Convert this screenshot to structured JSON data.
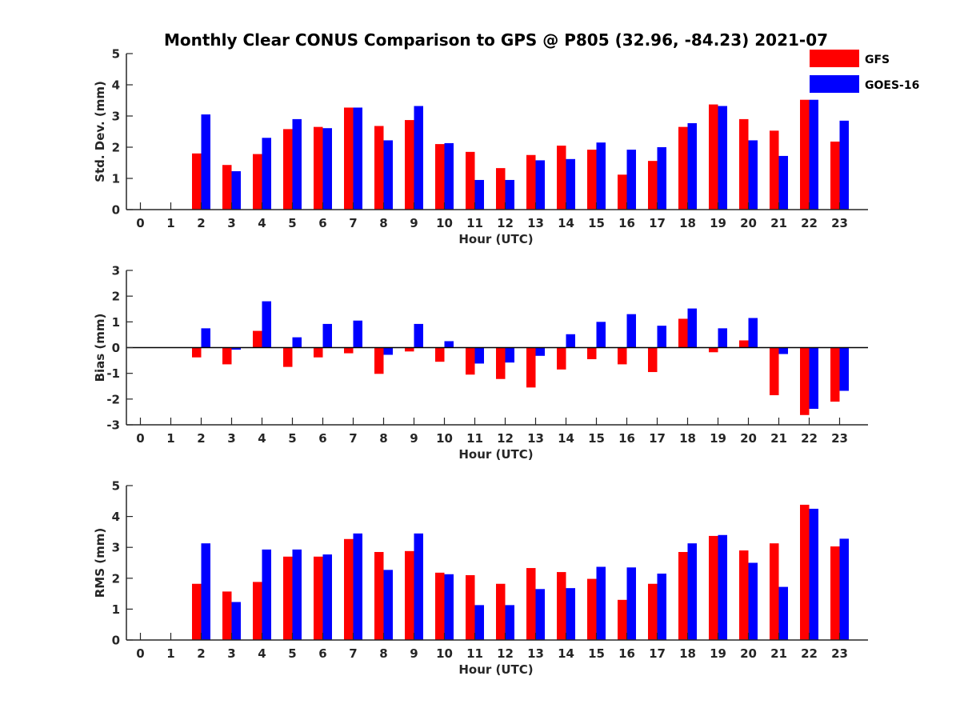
{
  "title": "Monthly Clear CONUS Comparison to GPS @ P805 (32.96, -84.23) 2021-07",
  "legend": {
    "placement": "top-right",
    "entries": [
      {
        "label": "GFS",
        "color": "#ff0000"
      },
      {
        "label": "GOES-16",
        "color": "#0000ff"
      }
    ]
  },
  "chart_data": [
    {
      "type": "bar",
      "ylabel": "Std. Dev. (mm)",
      "xlabel": "Hour (UTC)",
      "ylim": [
        0,
        5
      ],
      "yticks": [
        0,
        1,
        2,
        3,
        4,
        5
      ],
      "categories": [
        "0",
        "1",
        "2",
        "3",
        "4",
        "5",
        "6",
        "7",
        "8",
        "9",
        "10",
        "11",
        "12",
        "13",
        "14",
        "15",
        "16",
        "17",
        "18",
        "19",
        "20",
        "21",
        "22",
        "23"
      ],
      "series": [
        {
          "name": "GFS",
          "color": "#ff0000",
          "values": [
            null,
            null,
            1.8,
            1.43,
            1.78,
            2.58,
            2.65,
            3.27,
            2.68,
            2.87,
            2.1,
            1.85,
            1.33,
            1.75,
            2.05,
            1.92,
            1.12,
            1.56,
            2.65,
            3.37,
            2.9,
            2.53,
            3.52,
            2.18
          ]
        },
        {
          "name": "GOES-16",
          "color": "#0000ff",
          "values": [
            null,
            null,
            3.05,
            1.23,
            2.3,
            2.9,
            2.61,
            3.27,
            2.22,
            3.32,
            2.13,
            0.95,
            0.95,
            1.58,
            1.62,
            2.15,
            1.92,
            2.0,
            2.77,
            3.32,
            2.22,
            1.72,
            3.52,
            2.85
          ]
        }
      ]
    },
    {
      "type": "bar",
      "ylabel": "Bias (mm)",
      "xlabel": "Hour (UTC)",
      "ylim": [
        -3,
        3
      ],
      "yticks": [
        -3,
        -2,
        -1,
        0,
        1,
        2,
        3
      ],
      "categories": [
        "0",
        "1",
        "2",
        "3",
        "4",
        "5",
        "6",
        "7",
        "8",
        "9",
        "10",
        "11",
        "12",
        "13",
        "14",
        "15",
        "16",
        "17",
        "18",
        "19",
        "20",
        "21",
        "22",
        "23"
      ],
      "series": [
        {
          "name": "GFS",
          "color": "#ff0000",
          "values": [
            null,
            null,
            -0.38,
            -0.65,
            0.65,
            -0.75,
            -0.38,
            -0.22,
            -1.02,
            -0.15,
            -0.55,
            -1.05,
            -1.22,
            -1.55,
            -0.85,
            -0.45,
            -0.65,
            -0.95,
            1.12,
            -0.18,
            0.28,
            -1.85,
            -2.62,
            -2.1
          ]
        },
        {
          "name": "GOES-16",
          "color": "#0000ff",
          "values": [
            null,
            null,
            0.75,
            -0.08,
            1.8,
            0.4,
            0.92,
            1.05,
            -0.28,
            0.92,
            0.25,
            -0.62,
            -0.58,
            -0.32,
            0.52,
            1.0,
            1.3,
            0.85,
            1.52,
            0.75,
            1.15,
            -0.25,
            -2.38,
            -1.68
          ]
        }
      ]
    },
    {
      "type": "bar",
      "ylabel": "RMS (mm)",
      "xlabel": "Hour (UTC)",
      "ylim": [
        0,
        5
      ],
      "yticks": [
        0,
        1,
        2,
        3,
        4,
        5
      ],
      "categories": [
        "0",
        "1",
        "2",
        "3",
        "4",
        "5",
        "6",
        "7",
        "8",
        "9",
        "10",
        "11",
        "12",
        "13",
        "14",
        "15",
        "16",
        "17",
        "18",
        "19",
        "20",
        "21",
        "22",
        "23"
      ],
      "series": [
        {
          "name": "GFS",
          "color": "#ff0000",
          "values": [
            null,
            null,
            1.82,
            1.57,
            1.88,
            2.7,
            2.7,
            3.27,
            2.85,
            2.88,
            2.18,
            2.1,
            1.82,
            2.33,
            2.2,
            1.98,
            1.3,
            1.82,
            2.85,
            3.37,
            2.9,
            3.13,
            4.38,
            3.03
          ]
        },
        {
          "name": "GOES-16",
          "color": "#0000ff",
          "values": [
            null,
            null,
            3.13,
            1.23,
            2.93,
            2.93,
            2.77,
            3.45,
            2.27,
            3.45,
            2.13,
            1.13,
            1.13,
            1.65,
            1.68,
            2.37,
            2.35,
            2.15,
            3.13,
            3.4,
            2.5,
            1.72,
            4.25,
            3.28
          ]
        }
      ]
    }
  ]
}
